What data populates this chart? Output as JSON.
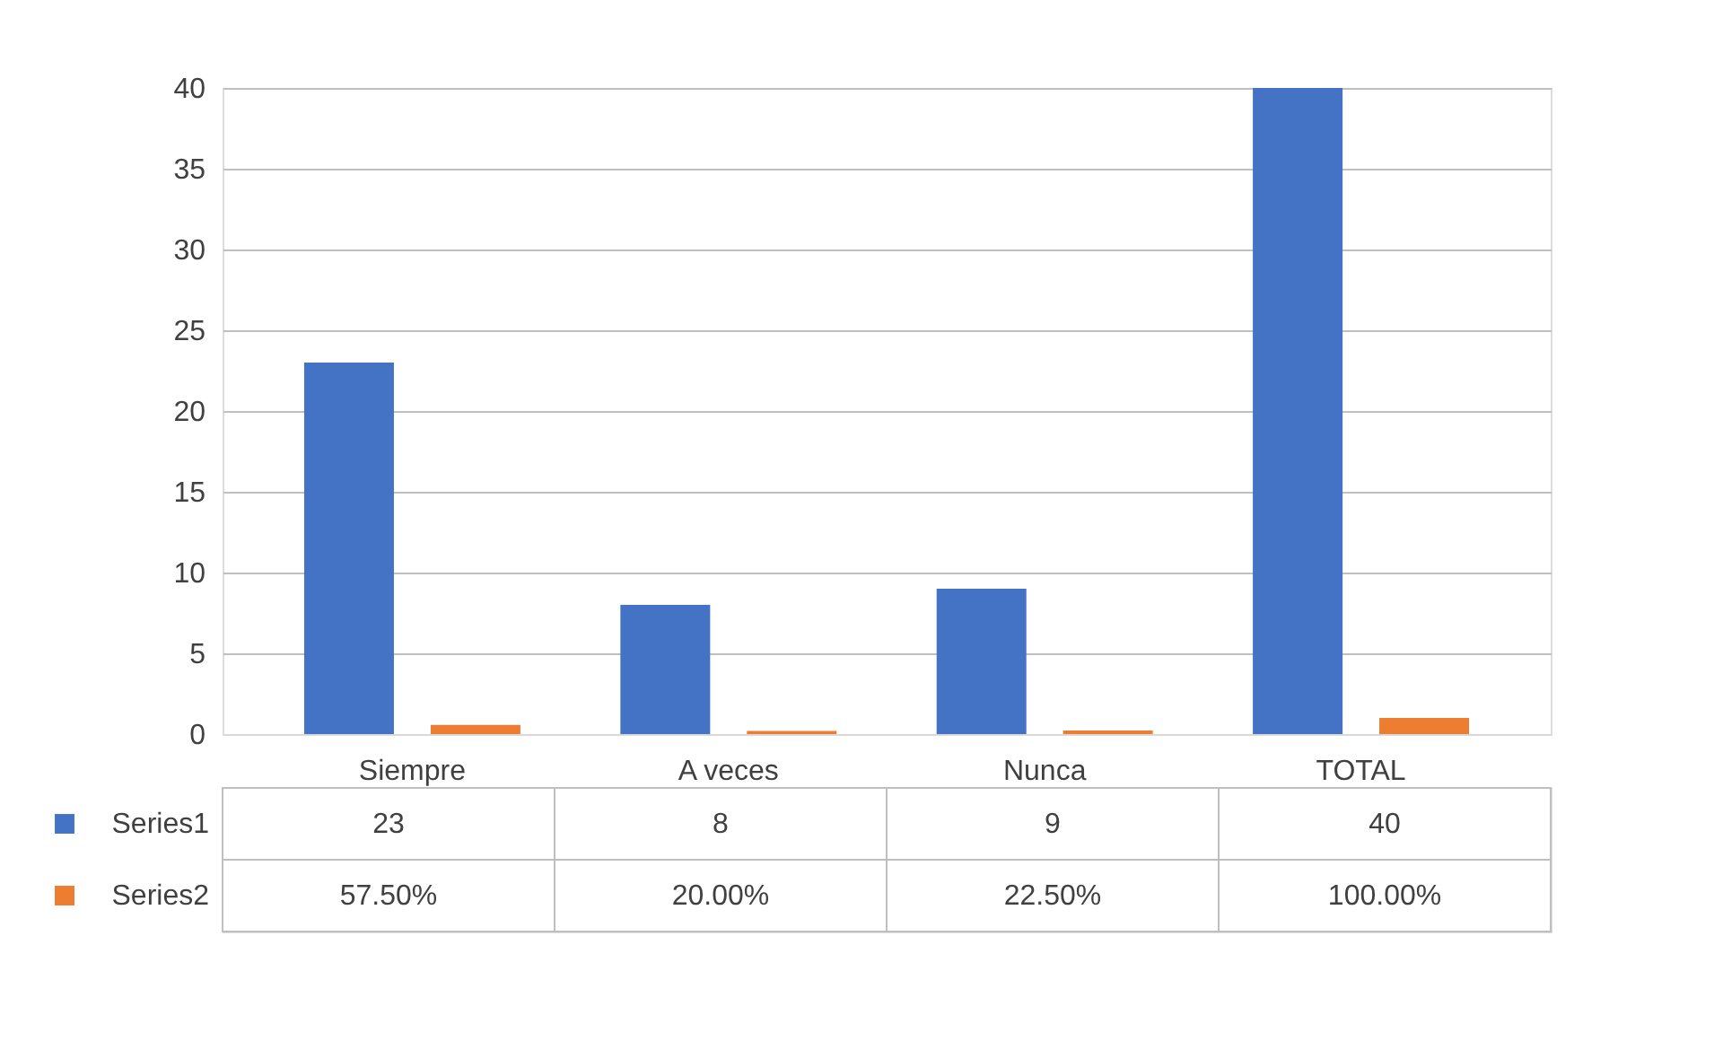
{
  "chart_data": {
    "type": "bar",
    "categories": [
      "Siempre",
      "A veces",
      "Nunca",
      "TOTAL"
    ],
    "series": [
      {
        "name": "Series1",
        "color": "#4472c4",
        "values": [
          23,
          8,
          9,
          40
        ]
      },
      {
        "name": "Series2",
        "color": "#ed7d31",
        "values": [
          0.575,
          0.2,
          0.225,
          1.0
        ],
        "value_labels": [
          "57.50%",
          "20.00%",
          "22.50%",
          "100.00%"
        ]
      }
    ],
    "data_labels": true,
    "ylim": [
      0,
      40
    ],
    "yticks": [
      0,
      5,
      10,
      15,
      20,
      25,
      30,
      35,
      40
    ],
    "grid": "y",
    "legend": "bottom"
  }
}
